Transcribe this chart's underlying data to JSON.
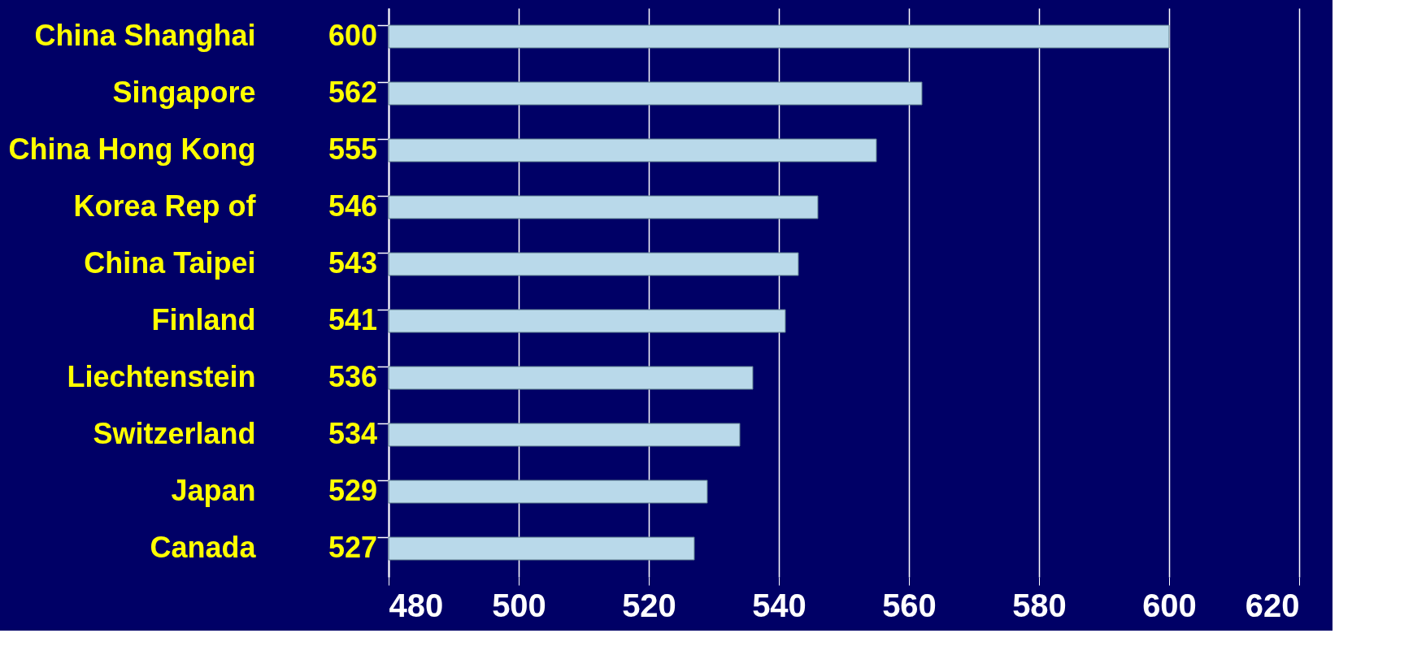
{
  "chart_data": {
    "type": "bar",
    "orientation": "horizontal",
    "categories": [
      "China Shanghai",
      "Singapore",
      "China Hong Kong",
      "Korea Rep of",
      "China Taipei",
      "Finland",
      "Liechtenstein",
      "Switzerland",
      "Japan",
      "Canada"
    ],
    "values": [
      600,
      562,
      555,
      546,
      543,
      541,
      536,
      534,
      529,
      527
    ],
    "color": "#b9d9ea",
    "xlim": [
      480,
      620
    ],
    "xticks": [
      480,
      500,
      520,
      540,
      560,
      580,
      600,
      620
    ],
    "grid": "x",
    "data_labels": true
  }
}
